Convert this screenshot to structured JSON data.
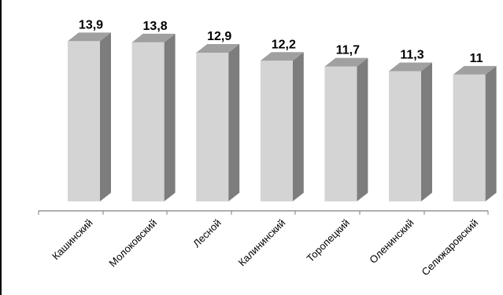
{
  "chart_data": {
    "type": "bar",
    "categories": [
      "Кашинский",
      "Молоковский",
      "Лесной",
      "Калининский",
      "Торопецкий",
      "Оленинский",
      "Селижаровский"
    ],
    "values": [
      13.9,
      13.8,
      12.9,
      12.2,
      11.7,
      11.3,
      11
    ],
    "value_labels": [
      "13,9",
      "13,8",
      "12,9",
      "12,2",
      "11,7",
      "11,3",
      "11"
    ],
    "title": "",
    "xlabel": "",
    "ylabel": "",
    "ylim": [
      0,
      15
    ],
    "style": "3d",
    "grid": false,
    "colors": {
      "bar_front": "#d4d4d4",
      "bar_side": "#7d7d7d",
      "bar_top": "#a0a0a0",
      "axis": "#7f7f7f"
    }
  }
}
